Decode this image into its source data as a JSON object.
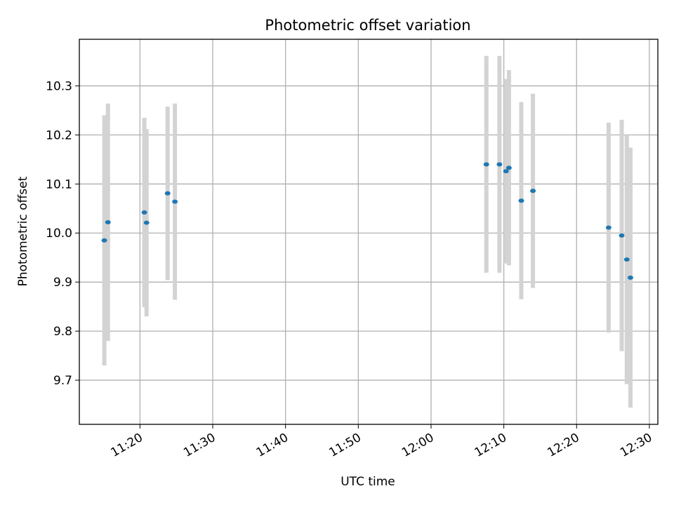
{
  "chart_data": {
    "type": "scatter",
    "title": "Photometric offset variation",
    "xlabel": "UTC time",
    "ylabel": "Photometric offset",
    "x_unit": "time of day (UTC, HH:MM)",
    "xlim": [
      "11:11:40",
      "12:31:10"
    ],
    "ylim": [
      9.61,
      10.395
    ],
    "xticks": [
      "11:20",
      "11:30",
      "11:40",
      "11:50",
      "12:00",
      "12:10",
      "12:20",
      "12:30"
    ],
    "yticks": [
      9.7,
      9.8,
      9.9,
      10.0,
      10.1,
      10.2,
      10.3
    ],
    "grid": true,
    "colors": {
      "points": "#1f77b4",
      "errorbars": "#d3d3d3"
    },
    "series": [
      {
        "points": [
          {
            "x": "11:15:06",
            "y": 9.985,
            "err": 0.255
          },
          {
            "x": "11:15:36",
            "y": 10.022,
            "err": 0.242
          },
          {
            "x": "11:20:36",
            "y": 10.042,
            "err": 0.193
          },
          {
            "x": "11:20:54",
            "y": 10.021,
            "err": 0.191
          },
          {
            "x": "11:23:48",
            "y": 10.081,
            "err": 0.177
          },
          {
            "x": "11:24:48",
            "y": 10.064,
            "err": 0.2
          },
          {
            "x": "12:07:36",
            "y": 10.14,
            "err": 0.221
          },
          {
            "x": "12:09:24",
            "y": 10.14,
            "err": 0.221
          },
          {
            "x": "12:10:18",
            "y": 10.126,
            "err": 0.188
          },
          {
            "x": "12:10:42",
            "y": 10.133,
            "err": 0.199
          },
          {
            "x": "12:12:24",
            "y": 10.066,
            "err": 0.201
          },
          {
            "x": "12:14:00",
            "y": 10.086,
            "err": 0.198
          },
          {
            "x": "12:24:24",
            "y": 10.011,
            "err": 0.214
          },
          {
            "x": "12:26:12",
            "y": 9.995,
            "err": 0.236
          },
          {
            "x": "12:26:54",
            "y": 9.946,
            "err": 0.254
          },
          {
            "x": "12:27:24",
            "y": 9.909,
            "err": 0.265
          }
        ]
      }
    ]
  }
}
